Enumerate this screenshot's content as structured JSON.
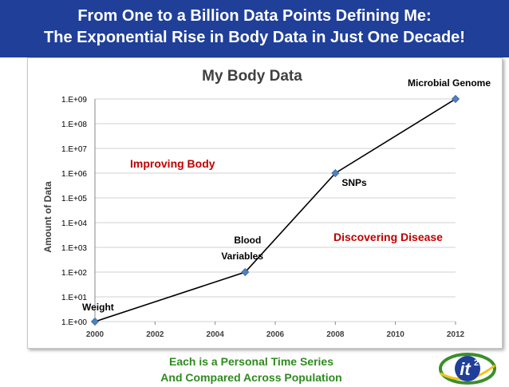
{
  "header": {
    "line1": "From One to a Billion Data Points Defining Me:",
    "line2": "The Exponential Rise in Body Data in Just One Decade!"
  },
  "chart_data": {
    "type": "line",
    "title": "My Body Data",
    "xlabel": "",
    "ylabel": "Amount of Data",
    "yscale": "log",
    "xlim": [
      2000,
      2012
    ],
    "ylim": [
      1,
      1000000000
    ],
    "x_ticks": [
      "2000",
      "2002",
      "2004",
      "2006",
      "2008",
      "2010",
      "2012"
    ],
    "y_ticks": [
      "1.E+00",
      "1.E+01",
      "1.E+02",
      "1.E+03",
      "1.E+04",
      "1.E+05",
      "1.E+06",
      "1.E+07",
      "1.E+08",
      "1.E+09"
    ],
    "grid": "horizontal",
    "legend": "none",
    "series": [
      {
        "color": "#000000",
        "marker_color": "#4f81bd",
        "x": [
          2000,
          2005,
          2008,
          2012
        ],
        "y": [
          1,
          100,
          1000000,
          1000000000
        ]
      }
    ],
    "point_labels": [
      {
        "text": "Weight",
        "x": 2000,
        "y": 1
      },
      {
        "text": "Blood Variables",
        "x": 2005,
        "y": 100
      },
      {
        "text": "SNPs",
        "x": 2008,
        "y": 1000000
      },
      {
        "text": "Microbial Genome",
        "x": 2012,
        "y": 1000000000
      }
    ],
    "annotations": [
      {
        "text": "Improving Body",
        "color": "#c00000"
      },
      {
        "text": "Discovering Disease",
        "color": "#c00000"
      }
    ]
  },
  "footer": {
    "line1": "Each is a Personal Time Series",
    "line2": "And Compared Across Population"
  },
  "logo": {
    "text": "it",
    "superscript": "2"
  }
}
